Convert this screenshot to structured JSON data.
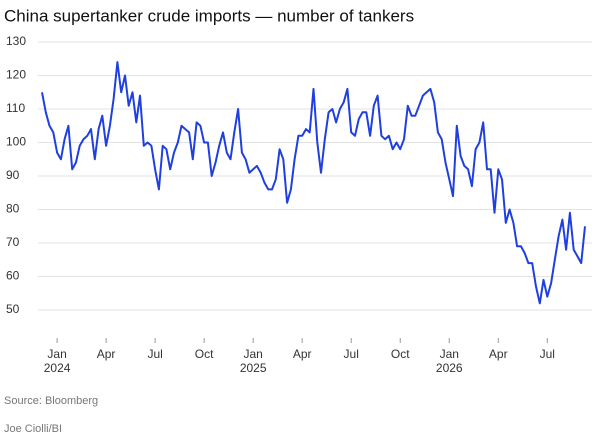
{
  "chart_data": {
    "type": "line",
    "title": "China supertanker crude imports — number of tankers",
    "source": "Source: Bloomberg",
    "credit": "Joe Ciolli/BI",
    "categories": [
      null,
      null,
      null,
      null,
      "Jan 2024",
      null,
      null,
      null,
      null,
      null,
      null,
      null,
      null,
      null,
      null,
      null,
      null,
      "Apr",
      null,
      null,
      null,
      null,
      null,
      null,
      null,
      null,
      null,
      null,
      null,
      null,
      "Jul",
      null,
      null,
      null,
      null,
      null,
      null,
      null,
      null,
      null,
      null,
      null,
      null,
      "Oct",
      null,
      null,
      null,
      null,
      null,
      null,
      null,
      null,
      null,
      null,
      null,
      null,
      "Jan 2025",
      null,
      null,
      null,
      null,
      null,
      null,
      null,
      null,
      null,
      null,
      null,
      null,
      "Apr",
      null,
      null,
      null,
      null,
      null,
      null,
      null,
      null,
      null,
      null,
      null,
      null,
      "Jul",
      null,
      null,
      null,
      null,
      null,
      null,
      null,
      null,
      null,
      null,
      null,
      null,
      "Oct",
      null,
      null,
      null,
      null,
      null,
      null,
      null,
      null,
      null,
      null,
      null,
      null,
      "Jan 2026",
      null,
      null,
      null,
      null,
      null,
      null,
      null,
      null,
      null,
      null,
      null,
      null,
      "Apr",
      null,
      null,
      null,
      null,
      null,
      null,
      null,
      null,
      null,
      null,
      null,
      null,
      "Jul",
      null,
      null,
      null,
      null,
      null,
      null,
      null,
      null,
      null,
      null
    ],
    "series": [
      {
        "name": "Tankers",
        "color": "#1f3fe0",
        "values": [
          115,
          109,
          105,
          103,
          97,
          95,
          101,
          105,
          92,
          94,
          99,
          101,
          102,
          104,
          95,
          104,
          108,
          99,
          105,
          113,
          124,
          115,
          120,
          111,
          115,
          106,
          114,
          99,
          100,
          99,
          92,
          86,
          99,
          98,
          92,
          97,
          100,
          105,
          104,
          103,
          95,
          106,
          105,
          100,
          100,
          90,
          94,
          99,
          103,
          97,
          95,
          103,
          110,
          97,
          95,
          91,
          92,
          93,
          91,
          88,
          86,
          86,
          89,
          98,
          95,
          82,
          86,
          95,
          102,
          102,
          104,
          103,
          116,
          100,
          91,
          101,
          109,
          110,
          106,
          110,
          112,
          116,
          103,
          102,
          107,
          109,
          109,
          102,
          111,
          114,
          102,
          101,
          102,
          98,
          100,
          98,
          101,
          111,
          108,
          108,
          111,
          114,
          115,
          116,
          112,
          103,
          101,
          94,
          89,
          84,
          105,
          96,
          93,
          92,
          87,
          98,
          100,
          106,
          92,
          92,
          79,
          92,
          89,
          76,
          80,
          76,
          69,
          69,
          67,
          64,
          64,
          57,
          52,
          59,
          54,
          58,
          65,
          72,
          77,
          68,
          79,
          68,
          66,
          64,
          75
        ]
      }
    ],
    "ylim": [
      40,
      130
    ],
    "yticks": [
      50,
      60,
      70,
      80,
      90,
      100,
      110,
      120,
      130
    ],
    "grid": true
  }
}
